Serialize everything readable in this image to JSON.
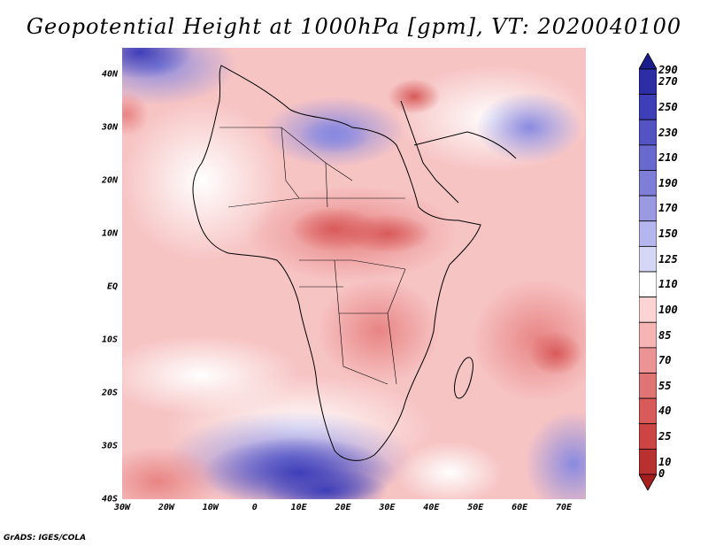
{
  "title": "Geopotential Height at 1000hPa [gpm], VT: 2020040100",
  "credit": "GrADS: IGES/COLA",
  "lat_labels": [
    "40N",
    "30N",
    "20N",
    "10N",
    "EQ",
    "10S",
    "20S",
    "30S",
    "40S"
  ],
  "lat_values": [
    40,
    30,
    20,
    10,
    0,
    -10,
    -20,
    -30,
    -40
  ],
  "lon_labels": [
    "30W",
    "20W",
    "10W",
    "0",
    "10E",
    "20E",
    "30E",
    "40E",
    "50E",
    "60E",
    "70E"
  ],
  "lon_values": [
    -30,
    -20,
    -10,
    0,
    10,
    20,
    30,
    40,
    50,
    60,
    70
  ],
  "extent": {
    "lon_min": -30,
    "lon_max": 75,
    "lat_min": -40,
    "lat_max": 45
  },
  "colorbar": {
    "labels": [
      "290",
      "270",
      "250",
      "230",
      "210",
      "190",
      "170",
      "150",
      "125",
      "110",
      "100",
      "85",
      "70",
      "55",
      "40",
      "25",
      "10",
      "0"
    ],
    "colors": [
      "#1c1c8c",
      "#2d2da6",
      "#3e3eb8",
      "#5353c4",
      "#6868cf",
      "#7e7ed9",
      "#9a9ae3",
      "#b6b6ee",
      "#d6d6f7",
      "#ffffff",
      "#fdd4d4",
      "#f6b4b4",
      "#ec9494",
      "#e07474",
      "#d85a5a",
      "#cc4444",
      "#b83030",
      "#a51f1f"
    ]
  }
}
